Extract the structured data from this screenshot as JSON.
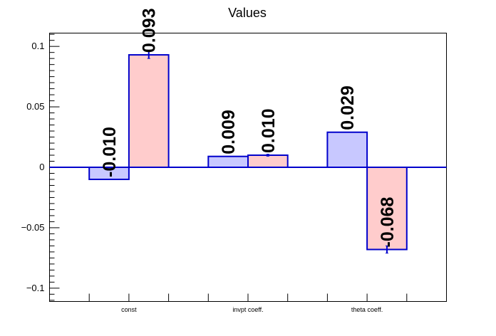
{
  "chart_data": {
    "type": "bar",
    "title": "Values",
    "categories": [
      "const",
      "invpt coeff.",
      "theta coeff."
    ],
    "series": [
      {
        "color": "#c8c8ff",
        "values": [
          -0.01,
          0.009,
          0.029
        ],
        "labels": [
          "-0.010",
          "0.009",
          "0.029"
        ],
        "errors": [
          0,
          0,
          0
        ]
      },
      {
        "color": "#ffcccc",
        "values": [
          0.093,
          0.01,
          -0.068
        ],
        "labels": [
          "0.093",
          "0.010",
          "-0.068"
        ],
        "errors": [
          0.003,
          0.0008,
          0.003
        ]
      }
    ],
    "ylim": [
      -0.111,
      0.111
    ],
    "yticks": [
      -0.1,
      -0.05,
      0,
      0.05,
      0.1
    ],
    "ytick_labels": [
      "−0.1",
      "−0.05",
      "0",
      "0.05",
      "0.1"
    ],
    "edge_color": "#0000cc",
    "xlabel": "",
    "ylabel": ""
  }
}
